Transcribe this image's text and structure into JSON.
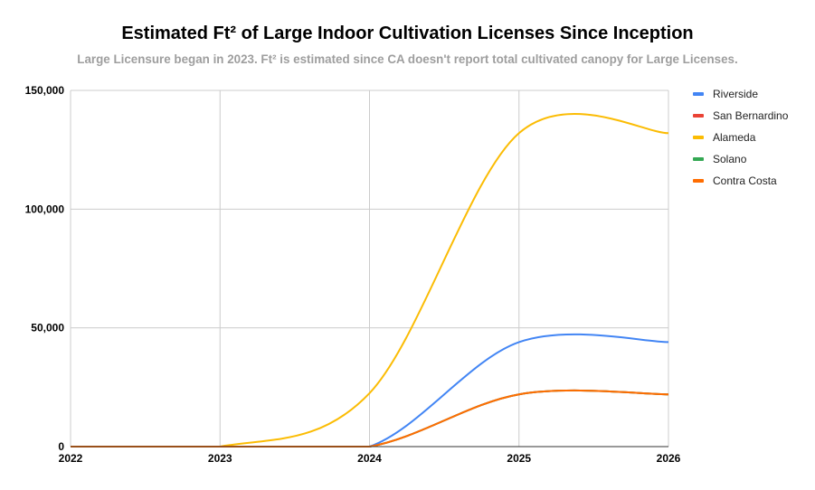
{
  "chart_data": {
    "type": "line",
    "smooth": true,
    "title": "Estimated Ft² of Large Indoor Cultivation Licenses Since Inception",
    "subtitle": "Large Licensure began in 2023. Ft² is estimated since CA doesn't report total cultivated canopy for Large Licenses.",
    "xlabel": "",
    "ylabel": "",
    "x": [
      "2022",
      "2023",
      "2024",
      "2025",
      "2026"
    ],
    "ylim": [
      0,
      150000
    ],
    "yticks": [
      0,
      50000,
      100000,
      150000
    ],
    "ytick_labels": [
      "0",
      "50,000",
      "100,000",
      "150,000"
    ],
    "grid": true,
    "legend_position": "right",
    "series": [
      {
        "name": "Riverside",
        "color": "#4285F4",
        "values": [
          0,
          0,
          0,
          44000,
          44000
        ]
      },
      {
        "name": "San Bernardino",
        "color": "#EA4335",
        "values": [
          0,
          0,
          0,
          22000,
          22000
        ]
      },
      {
        "name": "Alameda",
        "color": "#FBBC04",
        "values": [
          0,
          0,
          22500,
          132000,
          132000
        ]
      },
      {
        "name": "Solano",
        "color": "#34A853",
        "values": [
          0,
          0,
          0,
          22000,
          22000
        ]
      },
      {
        "name": "Contra Costa",
        "color": "#FF6D01",
        "values": [
          0,
          0,
          0,
          22000,
          22000
        ]
      }
    ]
  }
}
